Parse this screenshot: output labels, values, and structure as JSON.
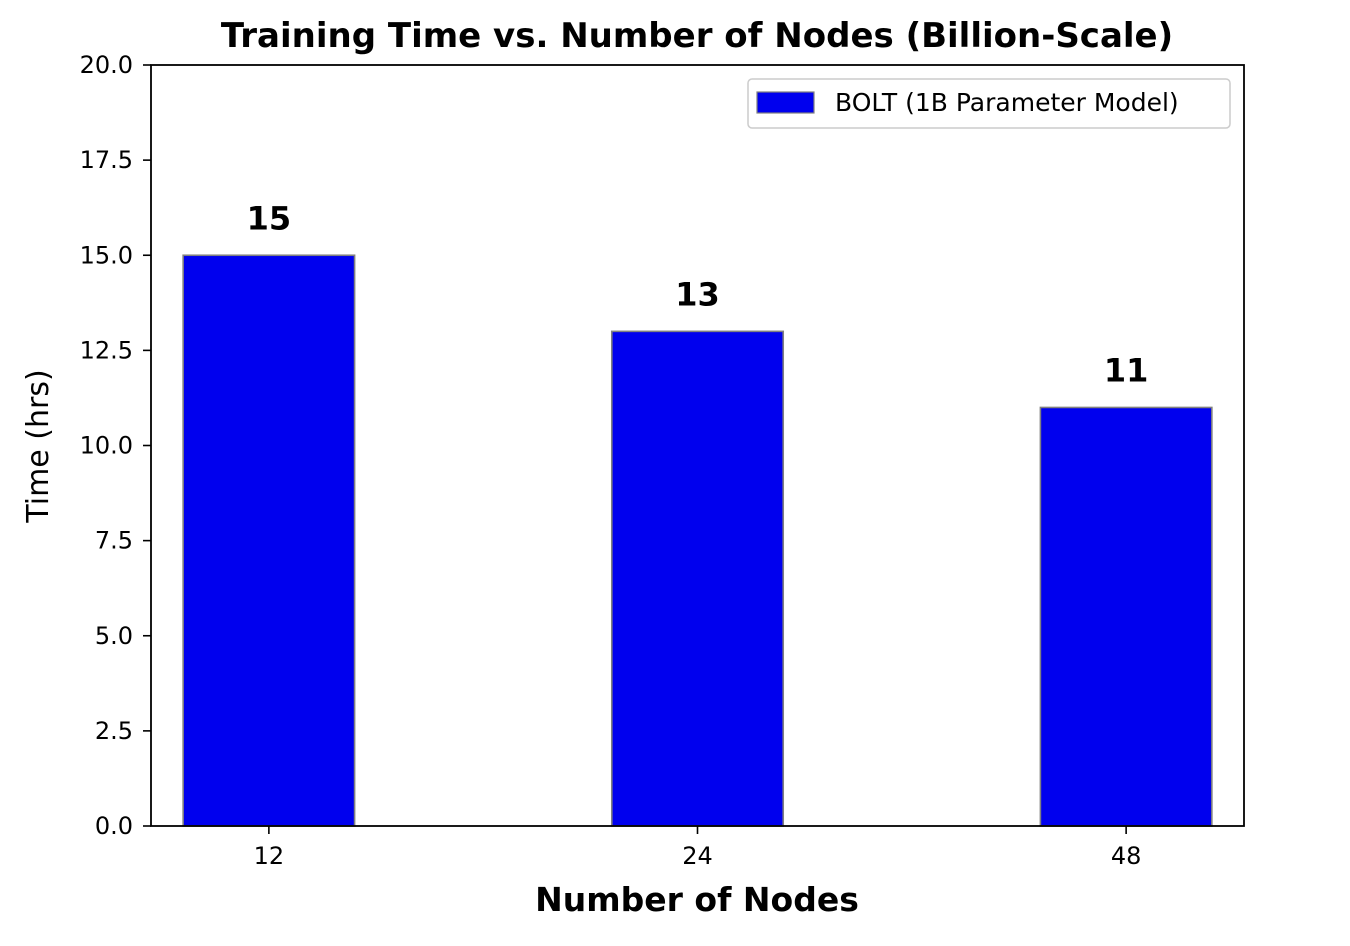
{
  "chart_data": {
    "type": "bar",
    "title": "Training Time vs. Number of Nodes (Billion-Scale)",
    "xlabel": "Number of Nodes",
    "ylabel": "Time (hrs)",
    "categories": [
      "12",
      "24",
      "48"
    ],
    "series": [
      {
        "name": "BOLT (1B Parameter Model)",
        "values": [
          15,
          13,
          11
        ],
        "color": "#0000ee",
        "edge_color": "#808080"
      }
    ],
    "data_labels": [
      "15",
      "13",
      "11"
    ],
    "ylim": [
      0,
      20
    ],
    "yticks": [
      0.0,
      2.5,
      5.0,
      7.5,
      10.0,
      12.5,
      15.0,
      17.5,
      20.0
    ],
    "ytick_labels": [
      "0.0",
      "2.5",
      "5.0",
      "7.5",
      "10.0",
      "12.5",
      "15.0",
      "17.5",
      "20.0"
    ],
    "grid": false,
    "legend_position": "top-right"
  }
}
